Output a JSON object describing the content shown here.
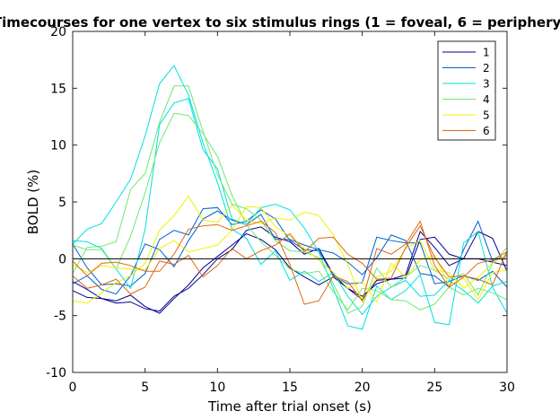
{
  "chart_data": {
    "type": "line",
    "title": "Timecourses for one vertex to six stimulus rings (1 = foveal, 6 = periphery)",
    "xlabel": "Time after trial onset (s)",
    "ylabel": "BOLD (%)",
    "xlim": [
      0,
      30
    ],
    "ylim": [
      -10,
      20
    ],
    "x_ticks": [
      0,
      5,
      10,
      15,
      20,
      25,
      30
    ],
    "y_ticks": [
      -10,
      -5,
      0,
      5,
      10,
      15,
      20
    ],
    "x_tick_labels": [
      "0",
      "5",
      "10",
      "15",
      "20",
      "25",
      "30"
    ],
    "y_tick_labels": [
      "-10",
      "-5",
      "0",
      "5",
      "10",
      "15",
      "20"
    ],
    "zero_line": true,
    "grid": false,
    "legend_position": "top-right",
    "x": [
      0,
      1,
      2,
      3,
      4,
      5,
      6,
      7,
      8,
      9,
      10,
      11,
      12,
      13,
      14,
      15,
      16,
      17,
      18,
      19,
      20,
      21,
      22,
      23,
      24,
      25,
      26,
      27,
      28,
      29,
      30
    ],
    "series": [
      {
        "name": "1",
        "color": "#00008f",
        "values": [
          -2.0,
          -2.7,
          -3.5,
          -3.7,
          -3.2,
          -4.2,
          -4.8,
          -3.5,
          -2.3,
          -0.8,
          0.2,
          1.2,
          2.2,
          1.7,
          0.8,
          -0.8,
          -1.6,
          -2.3,
          -1.6,
          -2.6,
          -3.6,
          -1.9,
          -1.8,
          -1.4,
          2.4,
          1.0,
          -0.6,
          0.0,
          0.0,
          -0.3,
          -0.6
        ]
      },
      {
        "name": "1",
        "color": "#00008f",
        "values": [
          -2.8,
          -3.4,
          -3.5,
          -3.9,
          -3.8,
          -4.4,
          -4.6,
          -3.3,
          -2.6,
          -1.4,
          0.0,
          0.8,
          2.5,
          2.8,
          1.9,
          1.5,
          0.4,
          0.9,
          -1.4,
          -2.6,
          -3.3,
          -2.2,
          -1.8,
          -1.7,
          1.7,
          1.9,
          0.4,
          0.0,
          2.4,
          1.8,
          -1.1
        ]
      },
      {
        "name": "2",
        "color": "#0060d0",
        "values": [
          -2.2,
          -1.5,
          -2.7,
          -3.1,
          -1.5,
          1.3,
          0.8,
          -0.7,
          1.6,
          3.5,
          4.2,
          3.4,
          3.0,
          3.9,
          1.7,
          1.7,
          1.2,
          0.8,
          0.5,
          -0.3,
          -1.4,
          0.1,
          2.1,
          1.6,
          -1.3,
          -1.5,
          -2.5,
          0.8,
          3.3,
          -0.2,
          0.3
        ]
      },
      {
        "name": "2",
        "color": "#0060d0",
        "values": [
          1.3,
          -0.8,
          -2.3,
          -2.2,
          -2.4,
          -1.3,
          1.7,
          2.5,
          2.1,
          4.4,
          4.5,
          3.0,
          3.3,
          4.3,
          3.5,
          1.6,
          0.8,
          0.7,
          -1.5,
          -2.2,
          -2.1,
          1.9,
          1.6,
          1.4,
          1.4,
          -2.2,
          -2.0,
          -1.5,
          -1.9,
          -1.1,
          -2.5
        ]
      },
      {
        "name": "3",
        "color": "#00e0e0",
        "values": [
          1.6,
          1.5,
          0.9,
          -0.9,
          -2.6,
          2.6,
          11.8,
          13.7,
          14.1,
          9.6,
          7.9,
          3.5,
          3.0,
          4.5,
          4.8,
          4.3,
          2.7,
          0.6,
          -2.6,
          -5.9,
          -6.2,
          -2.4,
          -3.6,
          -2.8,
          -1.4,
          -5.6,
          -5.8,
          1.4,
          2.4,
          -2.5,
          -4.8
        ]
      },
      {
        "name": "3",
        "color": "#00e0e0",
        "values": [
          1.3,
          2.6,
          3.1,
          5.0,
          7.0,
          10.8,
          15.4,
          17.0,
          14.4,
          10.2,
          6.7,
          2.6,
          1.8,
          -0.5,
          0.7,
          -1.9,
          -1.1,
          -2.0,
          -1.2,
          -3.3,
          -4.9,
          -3.3,
          -2.5,
          -1.9,
          -3.3,
          -3.2,
          -1.9,
          -2.8,
          -3.9,
          -2.4,
          -2.0
        ]
      },
      {
        "name": "4",
        "color": "#6ee86e",
        "values": [
          1.2,
          0.8,
          0.8,
          -0.9,
          2.0,
          5.8,
          10.2,
          12.8,
          12.6,
          11.0,
          9.0,
          5.6,
          3.0,
          1.5,
          0.3,
          -0.9,
          -1.3,
          -1.1,
          -2.9,
          -4.5,
          -2.6,
          -2.8,
          -3.6,
          -3.7,
          -4.5,
          -4.0,
          -2.5,
          -3.2,
          -2.6,
          -3.0,
          -3.6
        ]
      },
      {
        "name": "4",
        "color": "#6ee86e",
        "values": [
          -1.3,
          1.0,
          1.1,
          1.5,
          6.1,
          7.5,
          12.0,
          15.2,
          15.2,
          11.2,
          7.4,
          4.8,
          4.4,
          3.4,
          1.6,
          0.7,
          0.6,
          0.1,
          -2.2,
          -4.8,
          -4.2,
          -0.8,
          -2.5,
          -1.6,
          -0.6,
          -1.0,
          -1.8,
          -1.3,
          -3.2,
          -0.4,
          1.0
        ]
      },
      {
        "name": "5",
        "color": "#f0f000",
        "values": [
          -3.7,
          -3.9,
          -3.0,
          -2.1,
          -1.5,
          -0.4,
          2.5,
          3.8,
          5.5,
          3.4,
          3.2,
          4.7,
          3.4,
          3.1,
          3.6,
          3.4,
          4.1,
          3.8,
          2.1,
          -0.5,
          -3.8,
          -1.6,
          -1.1,
          0.9,
          1.6,
          -1.0,
          -1.2,
          -2.6,
          -1.6,
          -0.4,
          0.4
        ]
      },
      {
        "name": "5",
        "color": "#f0f000",
        "values": [
          -0.5,
          -1.2,
          -0.6,
          -0.8,
          -0.9,
          -1.0,
          0.9,
          1.6,
          0.6,
          0.9,
          1.2,
          2.5,
          4.6,
          4.5,
          2.8,
          2.0,
          0.9,
          -0.1,
          -1.2,
          -2.6,
          -2.0,
          -3.8,
          -0.4,
          -1.6,
          -0.1,
          0.3,
          -2.3,
          -1.7,
          -3.6,
          -1.2,
          -1.0
        ]
      },
      {
        "name": "6",
        "color": "#e06810",
        "values": [
          -1.5,
          -2.6,
          -2.3,
          -1.8,
          -3.1,
          -2.5,
          -0.2,
          -0.5,
          0.3,
          -1.6,
          -0.6,
          0.9,
          0.0,
          0.7,
          1.2,
          2.2,
          0.6,
          1.8,
          1.9,
          0.4,
          -0.4,
          -1.8,
          -1.7,
          1.0,
          2.9,
          0.1,
          -1.6,
          -1.5,
          -1.8,
          -2.3,
          0.7
        ]
      },
      {
        "name": "6",
        "color": "#e06810",
        "values": [
          -0.2,
          -1.5,
          -0.4,
          -0.3,
          -0.6,
          -1.1,
          -1.1,
          0.4,
          2.6,
          2.9,
          3.0,
          2.5,
          2.9,
          3.3,
          2.3,
          -0.5,
          -4.0,
          -3.7,
          -1.5,
          -2.0,
          -3.7,
          0.9,
          0.4,
          1.3,
          3.3,
          -0.6,
          -2.5,
          -1.6,
          -0.4,
          -0.1,
          0.6
        ]
      }
    ],
    "legend": [
      {
        "label": "1",
        "color": "#00008f"
      },
      {
        "label": "2",
        "color": "#0060d0"
      },
      {
        "label": "3",
        "color": "#00e0e0"
      },
      {
        "label": "4",
        "color": "#6ee86e"
      },
      {
        "label": "5",
        "color": "#f0f000"
      },
      {
        "label": "6",
        "color": "#e06810"
      }
    ]
  }
}
